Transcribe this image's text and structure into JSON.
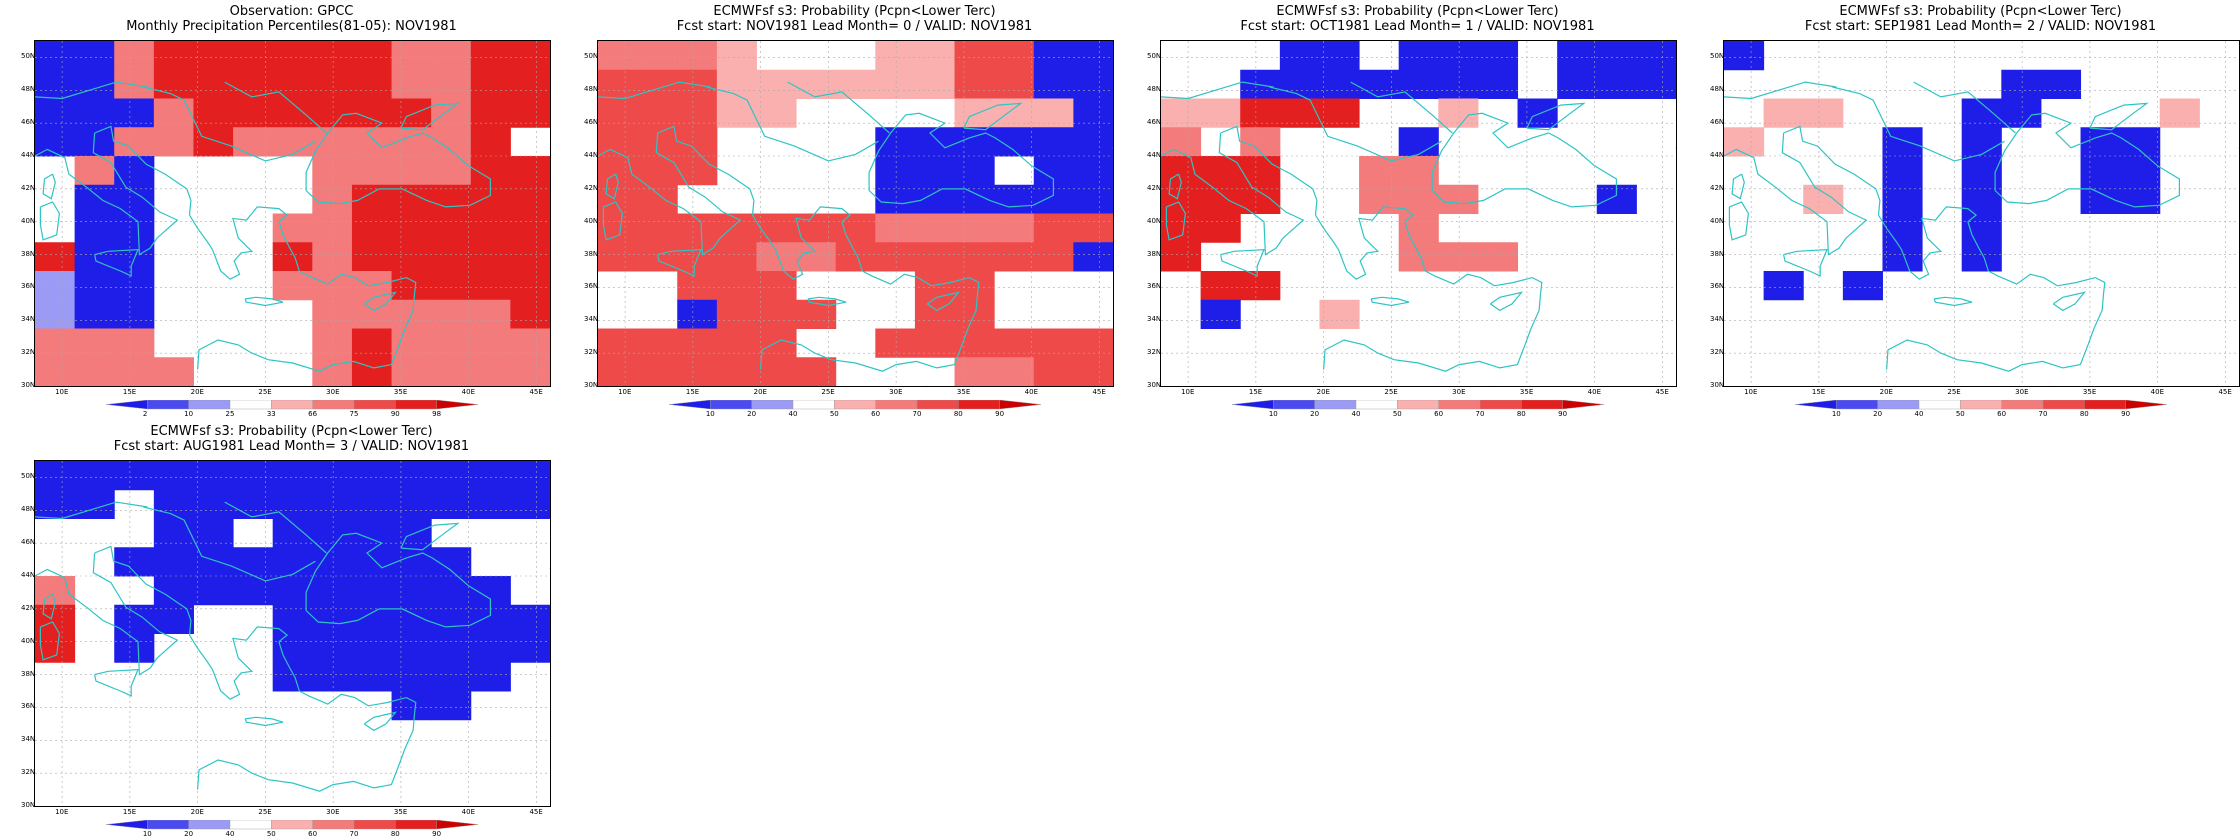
{
  "axis": {
    "lat_labels": [
      "30N",
      "32N",
      "34N",
      "36N",
      "38N",
      "40N",
      "42N",
      "44N",
      "46N",
      "48N",
      "50N"
    ],
    "lon_labels": [
      "10E",
      "15E",
      "20E",
      "25E",
      "30E",
      "35E",
      "40E",
      "45E"
    ],
    "lat_range": [
      30,
      51
    ],
    "lon_range": [
      8,
      46
    ],
    "gridlines": "dotted"
  },
  "colors": {
    "coast": "#2ec4c4",
    "lowers": [
      "#1e1ee8",
      "#5a5af0",
      "#9b9bf6"
    ],
    "uppers": [
      "#fbb0b0",
      "#f47b7b",
      "#ee4a4a",
      "#e41f1f",
      "#cc0000"
    ],
    "missing": "#ffffff"
  },
  "panels": [
    {
      "title_line1": "Observation: GPCC",
      "title_line2": "Monthly Precipitation Percentiles(81-05): NOV1981",
      "colorbar_labels": [
        "2",
        "10",
        "25",
        "33",
        "66",
        "75",
        "90",
        "98"
      ],
      "grid": [
        "1123333332233",
        "1123333332233",
        "1112333333233",
        "1122322222230",
        "0210000222233",
        "0110000233333",
        "0110002233333",
        "3110003233333",
        "4110002223333",
        "4110000222223",
        "2220000232222",
        "2222000232222"
      ],
      "legend_note": "rows north to south; 0 white, 1 deep blue, 2 medium red, 3 bright red, 4 light blue"
    },
    {
      "title_line1": "ECMWFsf s3: Probability (Pcpn<Lower Terc)",
      "title_line2": "Fcst start: NOV1981  Lead Month= 0 / VALID: NOV1981",
      "colorbar_labels": [
        "10",
        "20",
        "40",
        "50",
        "60",
        "70",
        "80",
        "90"
      ],
      "grid": [
        "2221000113344",
        "3331111113344",
        "3331100001114",
        "3330000444444",
        "3330000444044",
        "3300000444444",
        "3333333222233",
        "3333223333334",
        "0033300033000",
        "0043330033000",
        "3333300333333",
        "3333330002233"
      ],
      "legend_note": "0 white, 1 light pink, 2 salmon, 3 red, 4 deep blue"
    },
    {
      "title_line1": "ECMWFsf s3: Probability (Pcpn<Lower Terc)",
      "title_line2": "Fcst start: OCT1981  Lead Month= 1 / VALID: NOV1981",
      "colorbar_labels": [
        "10",
        "20",
        "40",
        "50",
        "60",
        "70",
        "80",
        "90"
      ],
      "grid": [
        "0004404440444",
        "0044444440444",
        "1133300104000",
        "2020004000000",
        "3330022000000",
        "3330022200040",
        "3300002000000",
        "3000002220000",
        "0330000000000",
        "0400100000000",
        "0000000000000",
        "0000000000000"
      ],
      "legend_note": "0 white, 1 light pink, 2 medium red, 3 red, 4 deep blue"
    },
    {
      "title_line1": "ECMWFsf s3: Probability (Pcpn<Lower Terc)",
      "title_line2": "Fcst start: SEP1981  Lead Month= 2 / VALID: NOV1981",
      "colorbar_labels": [
        "10",
        "20",
        "40",
        "50",
        "60",
        "70",
        "80",
        "90"
      ],
      "grid": [
        "4000000000000",
        "0000000440000",
        "0110004400010",
        "1000404004400",
        "0000404004400",
        "0010404004400",
        "0000404000000",
        "0000404000000",
        "0404000000000",
        "0000000000000",
        "0000000000000",
        "0000000000000"
      ],
      "legend_note": "0 white, 1 light pink, 4 deep blue"
    },
    {
      "title_line1": "ECMWFsf s3: Probability (Pcpn<Lower Terc)",
      "title_line2": "Fcst start: AUG1981  Lead Month= 3 / VALID: NOV1981",
      "colorbar_labels": [
        "10",
        "20",
        "40",
        "50",
        "60",
        "70",
        "80",
        "90"
      ],
      "grid": [
        "4444444444444",
        "4404444444444",
        "0004404444000",
        "0044444444400",
        "2004444444440",
        "3044004444444",
        "3040004444444",
        "0000004444440",
        "0000000004400",
        "0000000000000",
        "0000000000000",
        "0000000000000"
      ],
      "legend_note": "0 white, 2 salmon, 3 red, 4 deep blue"
    }
  ]
}
